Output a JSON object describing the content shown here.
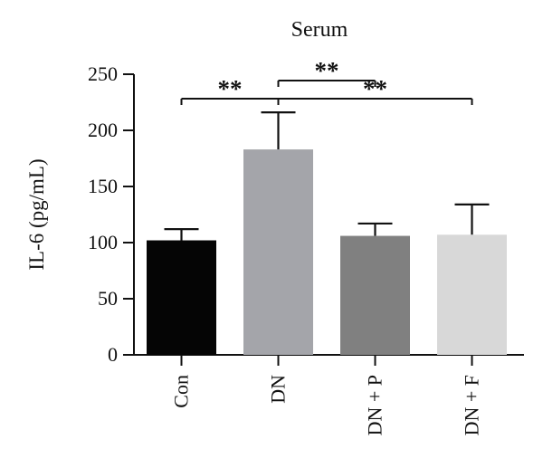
{
  "chart_data": {
    "type": "bar",
    "title": "Serum",
    "xlabel": "",
    "ylabel": "IL-6 (pg/mL)",
    "categories": [
      "Con",
      "DN",
      "DN + P",
      "DN + F"
    ],
    "values": [
      102,
      183,
      106,
      107
    ],
    "error_upper": [
      10,
      33,
      11,
      27
    ],
    "colors": [
      "#050505",
      "#a4a5aa",
      "#808080",
      "#d8d8d8"
    ],
    "ylim": [
      0,
      250
    ],
    "yticks": [
      0,
      50,
      100,
      150,
      200,
      250
    ],
    "ytick_labels": [
      "0",
      "50",
      "100",
      "150",
      "200",
      "250"
    ],
    "grid": false,
    "significance": [
      {
        "from": "Con",
        "to": "DN",
        "label": "**"
      },
      {
        "from": "DN",
        "to": "DN + P",
        "label": "**"
      },
      {
        "from": "DN",
        "to": "DN + F",
        "label": "**"
      }
    ]
  }
}
